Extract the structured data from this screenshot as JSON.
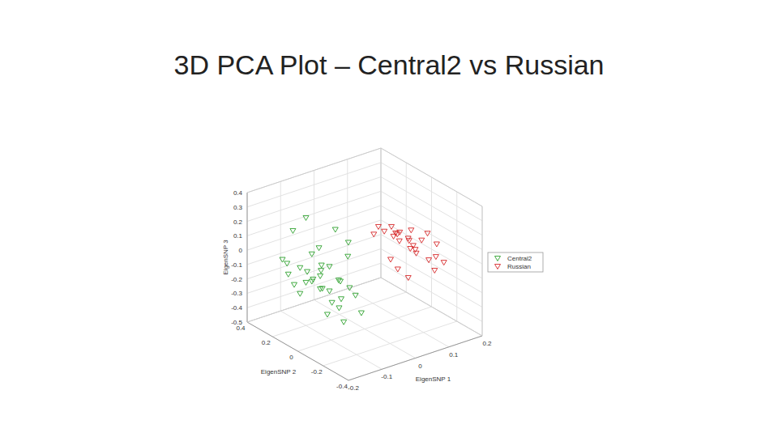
{
  "chart_data": {
    "type": "scatter",
    "title": "3D PCA Plot – Central2 vs Russian",
    "x_label": "EigenSNP 1",
    "y_label": "EigenSNP 2",
    "z_label": "EigenSNP 3",
    "xlim": [
      -0.2,
      0.2
    ],
    "xticks": [
      -0.2,
      -0.1,
      0,
      0.1,
      0.2
    ],
    "ylim": [
      -0.4,
      0.4
    ],
    "yticks": [
      -0.4,
      -0.2,
      0,
      0.2,
      0.4
    ],
    "zlim": [
      -0.5,
      0.4
    ],
    "zticks": [
      -0.5,
      -0.4,
      -0.3,
      -0.2,
      -0.1,
      0,
      0.1,
      0.2,
      0.3,
      0.4
    ],
    "grid": true,
    "legend": "right",
    "marker": "triangle_down",
    "series": [
      {
        "name": "Central2",
        "color": "#2ca02c",
        "x": [
          -0.1,
          -0.05,
          -0.12,
          -0.08,
          -0.03,
          -0.14,
          -0.09,
          -0.06,
          -0.11,
          -0.02,
          -0.07,
          -0.13,
          -0.04,
          -0.1,
          -0.08,
          -0.05,
          -0.12,
          -0.06,
          -0.09,
          -0.03,
          -0.11,
          -0.07,
          -0.04,
          -0.1,
          -0.08,
          -0.02,
          -0.06,
          -0.13,
          -0.05,
          -0.09,
          -0.01,
          -0.07,
          -0.04,
          -0.08
        ],
        "y": [
          0.2,
          0.1,
          0.25,
          0.15,
          0.05,
          0.28,
          0.18,
          0.12,
          0.22,
          0.08,
          0.16,
          0.26,
          0.1,
          0.2,
          0.14,
          0.06,
          0.24,
          0.12,
          0.18,
          0.04,
          0.22,
          0.15,
          0.08,
          0.19,
          0.13,
          0.02,
          0.1,
          0.27,
          0.07,
          0.17,
          0.0,
          0.11,
          0.06,
          0.14
        ],
        "z": [
          0.25,
          0.18,
          0.15,
          0.05,
          0.1,
          -0.05,
          0.0,
          -0.08,
          -0.1,
          -0.02,
          -0.12,
          -0.15,
          -0.18,
          -0.2,
          -0.14,
          -0.16,
          -0.22,
          -0.25,
          -0.19,
          -0.21,
          -0.28,
          -0.24,
          -0.3,
          -0.12,
          -0.06,
          -0.26,
          -0.32,
          -0.08,
          -0.35,
          -0.17,
          -0.38,
          -0.4,
          -0.45,
          -0.23
        ]
      },
      {
        "name": "Russian",
        "color": "#d62728",
        "x": [
          0.08,
          0.12,
          0.15,
          0.1,
          0.06,
          0.14,
          0.17,
          0.09,
          0.11,
          0.13,
          0.07,
          0.16,
          0.1,
          0.12,
          0.18,
          0.05,
          0.14,
          0.09,
          0.11,
          0.15,
          0.08,
          0.13,
          0.16,
          0.1,
          0.12,
          0.07
        ],
        "y": [
          0.0,
          -0.05,
          -0.1,
          0.02,
          0.05,
          -0.08,
          -0.12,
          -0.02,
          -0.06,
          -0.04,
          0.03,
          -0.14,
          -0.01,
          -0.09,
          -0.15,
          0.06,
          -0.03,
          0.01,
          -0.07,
          -0.11,
          -0.05,
          0.0,
          -0.13,
          -0.08,
          0.04,
          -0.02
        ],
        "z": [
          0.15,
          0.12,
          0.1,
          0.08,
          0.14,
          0.05,
          0.02,
          0.1,
          0.06,
          0.0,
          0.11,
          -0.05,
          0.04,
          -0.02,
          -0.1,
          0.09,
          -0.04,
          0.07,
          0.01,
          -0.08,
          -0.12,
          0.03,
          -0.15,
          -0.18,
          0.06,
          -0.06
        ]
      }
    ]
  }
}
